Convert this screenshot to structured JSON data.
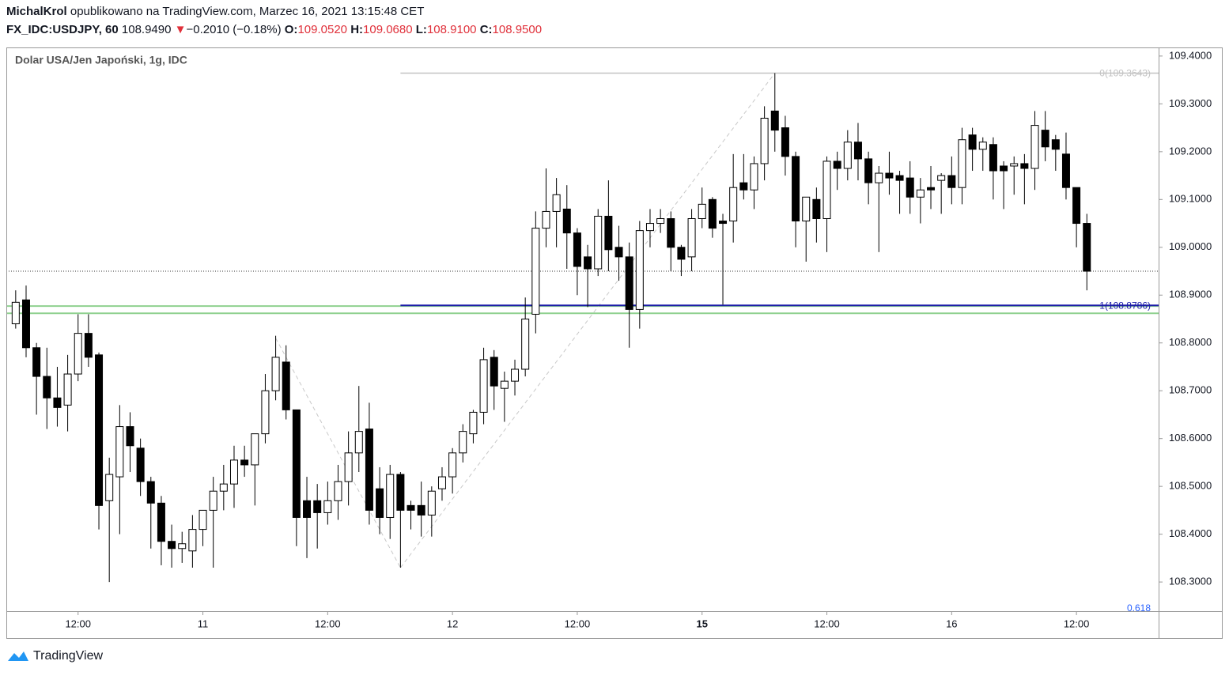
{
  "header": {
    "author": "MichalKrol",
    "published": "opublikowano na TradingView.com, Marzec 16, 2021 13:15:48 CET",
    "symbol": "FX_IDC:USDJPY, 60",
    "last": "108.9490",
    "arrow": "▼",
    "change": "−0.2010 (−0.18%)",
    "o_label": "O:",
    "o": "109.0520",
    "h_label": "H:",
    "h": "109.0680",
    "l_label": "L:",
    "l": "108.9100",
    "c_label": "C:",
    "c": "108.9500"
  },
  "footer": {
    "brand": "TradingView"
  },
  "chart_data": {
    "type": "candlestick",
    "title": "Dolar USA/Jen Japoński, 1g, IDC",
    "up_color": "#ffffff",
    "down_color": "#000000",
    "border_color": "#000000",
    "x": [
      6,
      7,
      8,
      9,
      10,
      11,
      12,
      13,
      14,
      15,
      16,
      17,
      18,
      19,
      20,
      21,
      22,
      23,
      24,
      25,
      26,
      27,
      28,
      29,
      30,
      31,
      32,
      33,
      34,
      35,
      36,
      37,
      38,
      39,
      40,
      41,
      42,
      43,
      44,
      45,
      46,
      47,
      48,
      49,
      50,
      51,
      52,
      53,
      54,
      55,
      56,
      57,
      58,
      59,
      60,
      61,
      62,
      63,
      64,
      65,
      66,
      67,
      68,
      69,
      70,
      71,
      72,
      73,
      74,
      75,
      76,
      77,
      78,
      79,
      80,
      81,
      82,
      83,
      84,
      85,
      86,
      87,
      88,
      89,
      90,
      91,
      92,
      93,
      94,
      95,
      96,
      97,
      98,
      99,
      100,
      101,
      102,
      103,
      104,
      105,
      106,
      107,
      108,
      109
    ],
    "open": [
      108.84,
      108.89,
      108.79,
      108.73,
      108.685,
      108.67,
      108.735,
      108.82,
      108.775,
      108.47,
      108.52,
      108.625,
      108.58,
      108.51,
      108.465,
      108.385,
      108.37,
      108.365,
      108.41,
      108.45,
      108.49,
      108.505,
      108.555,
      108.545,
      108.61,
      108.7,
      108.76,
      108.66,
      108.47,
      108.47,
      108.445,
      108.47,
      108.51,
      108.57,
      108.62,
      108.495,
      108.435,
      108.525,
      108.46,
      108.46,
      108.44,
      108.495,
      108.52,
      108.57,
      108.61,
      108.655,
      108.77,
      108.705,
      108.72,
      108.745,
      108.86,
      109.04,
      109.075,
      109.08,
      109.03,
      108.98,
      108.955,
      109.065,
      109.0,
      108.98,
      108.87,
      109.035,
      109.05,
      109.06,
      109.0,
      108.98,
      109.06,
      109.1,
      109.055,
      109.055,
      109.135,
      109.12,
      109.175,
      109.285,
      109.25,
      109.19,
      109.055,
      109.1,
      109.06,
      109.18,
      109.165,
      109.22,
      109.185,
      109.135,
      109.155,
      109.15,
      109.145,
      109.105,
      109.125,
      109.14,
      109.15,
      109.125,
      109.235,
      109.205,
      109.215,
      109.17,
      109.17,
      109.175,
      109.165,
      109.245,
      109.225,
      109.195,
      109.125,
      109.05
    ],
    "high": [
      108.91,
      108.92,
      108.8,
      108.79,
      108.75,
      108.775,
      108.86,
      108.86,
      108.78,
      108.56,
      108.67,
      108.655,
      108.6,
      108.52,
      108.48,
      108.42,
      108.405,
      108.44,
      108.45,
      108.52,
      108.545,
      108.585,
      108.585,
      108.61,
      108.735,
      108.815,
      108.795,
      108.66,
      108.52,
      108.505,
      108.51,
      108.545,
      108.615,
      108.71,
      108.675,
      108.54,
      108.545,
      108.53,
      108.47,
      108.51,
      108.5,
      108.54,
      108.58,
      108.63,
      108.66,
      108.79,
      108.785,
      108.74,
      108.765,
      108.895,
      109.075,
      109.165,
      109.145,
      109.13,
      109.04,
      109.005,
      109.08,
      109.14,
      109.045,
      109.01,
      109.055,
      109.08,
      109.08,
      109.075,
      109.005,
      109.08,
      109.125,
      109.105,
      109.07,
      109.195,
      109.195,
      109.19,
      109.295,
      109.3643,
      109.275,
      109.2,
      109.105,
      109.125,
      109.19,
      109.2,
      109.245,
      109.26,
      109.2,
      109.17,
      109.2,
      109.16,
      109.18,
      109.145,
      109.17,
      109.155,
      109.19,
      109.25,
      109.25,
      109.23,
      109.23,
      109.18,
      109.19,
      109.195,
      109.285,
      109.285,
      109.235,
      109.24,
      109.125,
      109.07
    ],
    "low": [
      108.83,
      108.77,
      108.65,
      108.62,
      108.625,
      108.615,
      108.72,
      108.75,
      108.41,
      108.3,
      108.4,
      108.53,
      108.48,
      108.37,
      108.335,
      108.33,
      108.34,
      108.33,
      108.375,
      108.33,
      108.45,
      108.455,
      108.52,
      108.46,
      108.59,
      108.68,
      108.64,
      108.375,
      108.35,
      108.37,
      108.42,
      108.43,
      108.46,
      108.53,
      108.42,
      108.4,
      108.39,
      108.33,
      108.41,
      108.395,
      108.395,
      108.47,
      108.485,
      108.55,
      108.59,
      108.63,
      108.66,
      108.635,
      108.69,
      108.73,
      108.82,
      109.0,
      109.0,
      108.955,
      108.9,
      108.875,
      108.94,
      108.95,
      108.93,
      108.79,
      108.83,
      109.0,
      109.03,
      108.95,
      108.94,
      108.95,
      109.04,
      109.02,
      108.88,
      109.01,
      109.1,
      109.08,
      109.14,
      109.2,
      109.15,
      109.0,
      108.97,
      109.01,
      108.99,
      109.12,
      109.14,
      109.14,
      109.09,
      108.99,
      109.11,
      109.07,
      109.07,
      109.05,
      109.08,
      109.07,
      109.09,
      109.09,
      109.16,
      109.16,
      109.1,
      109.08,
      109.11,
      109.09,
      109.12,
      109.18,
      109.16,
      109.1,
      109.0,
      108.91
    ],
    "close": [
      108.885,
      108.79,
      108.73,
      108.685,
      108.665,
      108.735,
      108.82,
      108.77,
      108.46,
      108.525,
      108.625,
      108.585,
      108.51,
      108.465,
      108.385,
      108.37,
      108.38,
      108.41,
      108.45,
      108.49,
      108.505,
      108.555,
      108.545,
      108.61,
      108.7,
      108.77,
      108.66,
      108.435,
      108.435,
      108.445,
      108.47,
      108.51,
      108.57,
      108.615,
      108.45,
      108.435,
      108.525,
      108.45,
      108.45,
      108.44,
      108.49,
      108.52,
      108.57,
      108.615,
      108.655,
      108.765,
      108.71,
      108.72,
      108.745,
      108.85,
      109.04,
      109.075,
      109.11,
      109.03,
      108.96,
      108.955,
      109.065,
      108.995,
      108.98,
      108.87,
      109.035,
      109.05,
      109.06,
      109.0,
      108.975,
      109.06,
      109.09,
      109.04,
      109.05,
      109.125,
      109.12,
      109.175,
      109.27,
      109.245,
      109.19,
      109.055,
      109.105,
      109.06,
      109.18,
      109.165,
      109.22,
      109.185,
      109.135,
      109.155,
      109.145,
      109.14,
      109.105,
      109.12,
      109.12,
      109.15,
      109.125,
      109.225,
      109.205,
      109.22,
      109.16,
      109.16,
      109.175,
      109.165,
      109.255,
      109.21,
      109.205,
      109.125,
      109.05,
      108.95
    ],
    "xlim": [
      5.1,
      115.9
    ],
    "ylim": [
      108.239,
      109.418
    ],
    "xticks": [
      {
        "value": 12,
        "label": "12:00"
      },
      {
        "value": 24,
        "label": "11"
      },
      {
        "value": 36,
        "label": "12:00"
      },
      {
        "value": 48,
        "label": "12"
      },
      {
        "value": 60,
        "label": "12:00"
      },
      {
        "value": 72,
        "label": "15",
        "bold": true
      },
      {
        "value": 84,
        "label": "12:00"
      },
      {
        "value": 96,
        "label": "16"
      },
      {
        "value": 108,
        "label": "12:00"
      }
    ],
    "yticks": [
      {
        "value": 109.4,
        "label": "109.4000"
      },
      {
        "value": 109.3,
        "label": "109.3000"
      },
      {
        "value": 109.2,
        "label": "109.2000"
      },
      {
        "value": 109.1,
        "label": "109.1000"
      },
      {
        "value": 109.0,
        "label": "109.0000"
      },
      {
        "value": 108.9,
        "label": "108.9000"
      },
      {
        "value": 108.8,
        "label": "108.8000"
      },
      {
        "value": 108.7,
        "label": "108.7000"
      },
      {
        "value": 108.6,
        "label": "108.6000"
      },
      {
        "value": 108.5,
        "label": "108.5000"
      },
      {
        "value": 108.4,
        "label": "108.4000"
      },
      {
        "value": 108.3,
        "label": "108.3000"
      }
    ],
    "current_price": 108.95,
    "zone": {
      "top": 108.877,
      "bottom": 108.862,
      "color": "#8fd18f"
    },
    "fib": {
      "start_x": 43,
      "levels": [
        {
          "value": 109.3643,
          "label": "0(109.3643)",
          "color": "#c3c3c3"
        },
        {
          "value": 108.8786,
          "label": "1(108.8786)",
          "color": "#1a1aa8"
        }
      ],
      "extra_label": "0.618"
    },
    "trend_lines": [
      {
        "x": [
          31,
          43
        ],
        "y": [
          108.81,
          108.33
        ]
      },
      {
        "x": [
          43,
          79
        ],
        "y": [
          108.33,
          109.3643
        ]
      }
    ]
  }
}
